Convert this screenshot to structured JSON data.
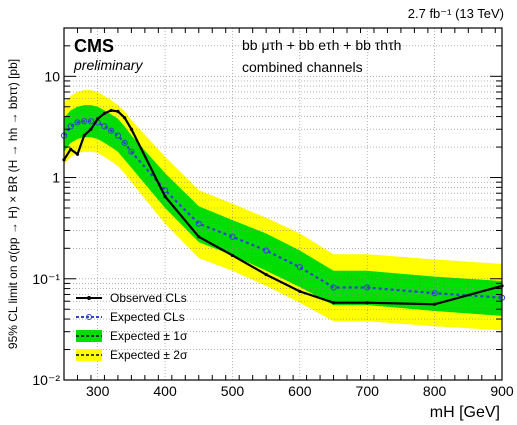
{
  "chart_data": {
    "type": "line",
    "lumi_label": "2.7 fb⁻¹ (13 TeV)",
    "experiment": "CMS",
    "status": "preliminary",
    "channel_line1": "bb μτh + bb eτh + bb τhτh",
    "channel_line2": "combined channels",
    "xlabel": "mH [GeV]",
    "ylabel": "95% CL limit on σ(pp → H) × BR (H → hh → bbττ) [pb]",
    "xlim": [
      250,
      900
    ],
    "ylim": [
      0.01,
      30
    ],
    "yscale": "log",
    "x_ticks": [
      300,
      400,
      500,
      600,
      700,
      800,
      900
    ],
    "y_ticks": [
      {
        "value": 0.01,
        "label": "10⁻²"
      },
      {
        "value": 0.1,
        "label": "10⁻¹"
      },
      {
        "value": 1,
        "label": "1"
      },
      {
        "value": 10,
        "label": "10"
      }
    ],
    "legend_position": "bottom-left",
    "legend": [
      "Observed CLs",
      "Expected CLs",
      "Expected ± 1σ",
      "Expected ± 2σ"
    ],
    "colors": {
      "observed": "#000000",
      "expected": "#3344cc",
      "band1": "#00dd00",
      "band2": "#ffff00"
    },
    "x": [
      250,
      260,
      270,
      280,
      290,
      300,
      310,
      320,
      330,
      340,
      350,
      400,
      450,
      500,
      550,
      600,
      650,
      700,
      800,
      900
    ],
    "observed": [
      1.5,
      1.9,
      1.7,
      2.6,
      3.0,
      3.8,
      4.3,
      4.6,
      4.5,
      3.9,
      3.0,
      0.65,
      0.26,
      0.17,
      0.11,
      0.075,
      0.058,
      0.058,
      0.056,
      0.085
    ],
    "expected": [
      2.6,
      3.2,
      3.5,
      3.6,
      3.6,
      3.5,
      3.2,
      2.9,
      2.6,
      2.2,
      1.8,
      0.75,
      0.35,
      0.26,
      0.19,
      0.13,
      0.082,
      0.082,
      0.072,
      0.065
    ],
    "band1_low": [
      1.8,
      2.2,
      2.4,
      2.5,
      2.5,
      2.4,
      2.2,
      2.0,
      1.8,
      1.5,
      1.25,
      0.5,
      0.23,
      0.17,
      0.12,
      0.083,
      0.055,
      0.055,
      0.048,
      0.043
    ],
    "band1_high": [
      3.9,
      4.6,
      5.0,
      5.2,
      5.2,
      5.0,
      4.6,
      4.2,
      3.8,
      3.2,
      2.6,
      1.1,
      0.52,
      0.38,
      0.28,
      0.19,
      0.12,
      0.12,
      0.105,
      0.095
    ],
    "band2_low": [
      1.35,
      1.6,
      1.75,
      1.8,
      1.8,
      1.75,
      1.6,
      1.45,
      1.3,
      1.1,
      0.9,
      0.35,
      0.16,
      0.12,
      0.085,
      0.058,
      0.038,
      0.038,
      0.034,
      0.031
    ],
    "band2_high": [
      5.5,
      6.4,
      7.0,
      7.3,
      7.3,
      7.0,
      6.4,
      5.8,
      5.2,
      4.5,
      3.7,
      1.6,
      0.75,
      0.55,
      0.4,
      0.28,
      0.175,
      0.175,
      0.155,
      0.14
    ],
    "expected_markers_x": [
      250,
      260,
      270,
      280,
      290,
      300,
      310,
      320,
      330,
      340,
      350,
      400,
      450,
      500,
      550,
      600,
      650,
      700,
      800,
      900
    ]
  }
}
